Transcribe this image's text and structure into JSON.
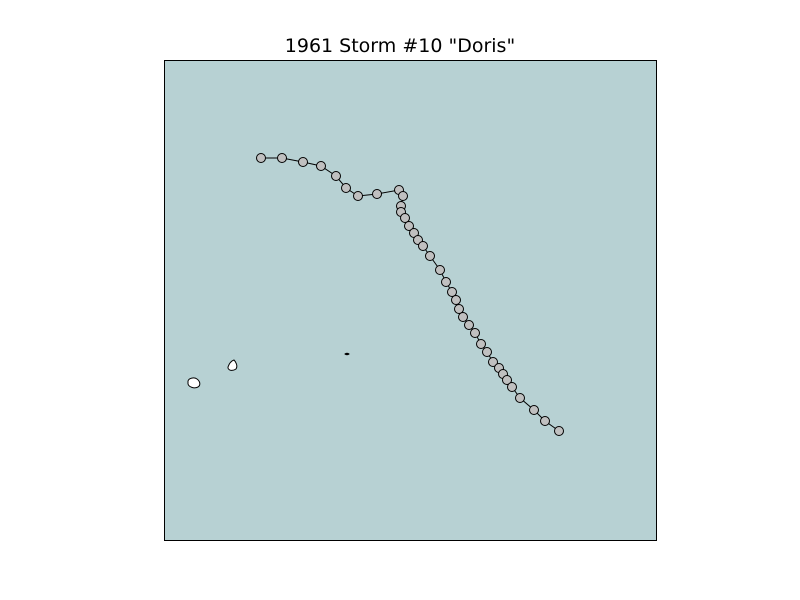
{
  "title": "1961 Storm #10 \"Doris\"",
  "colors": {
    "ocean": "#b7d1d3",
    "land": "#ffffff",
    "frame": "#000000",
    "track_line": "#000000",
    "marker_fill": "#c0c0c0",
    "marker_edge": "#000000"
  },
  "icons": {
    "track_marker": "circle-marker"
  }
}
